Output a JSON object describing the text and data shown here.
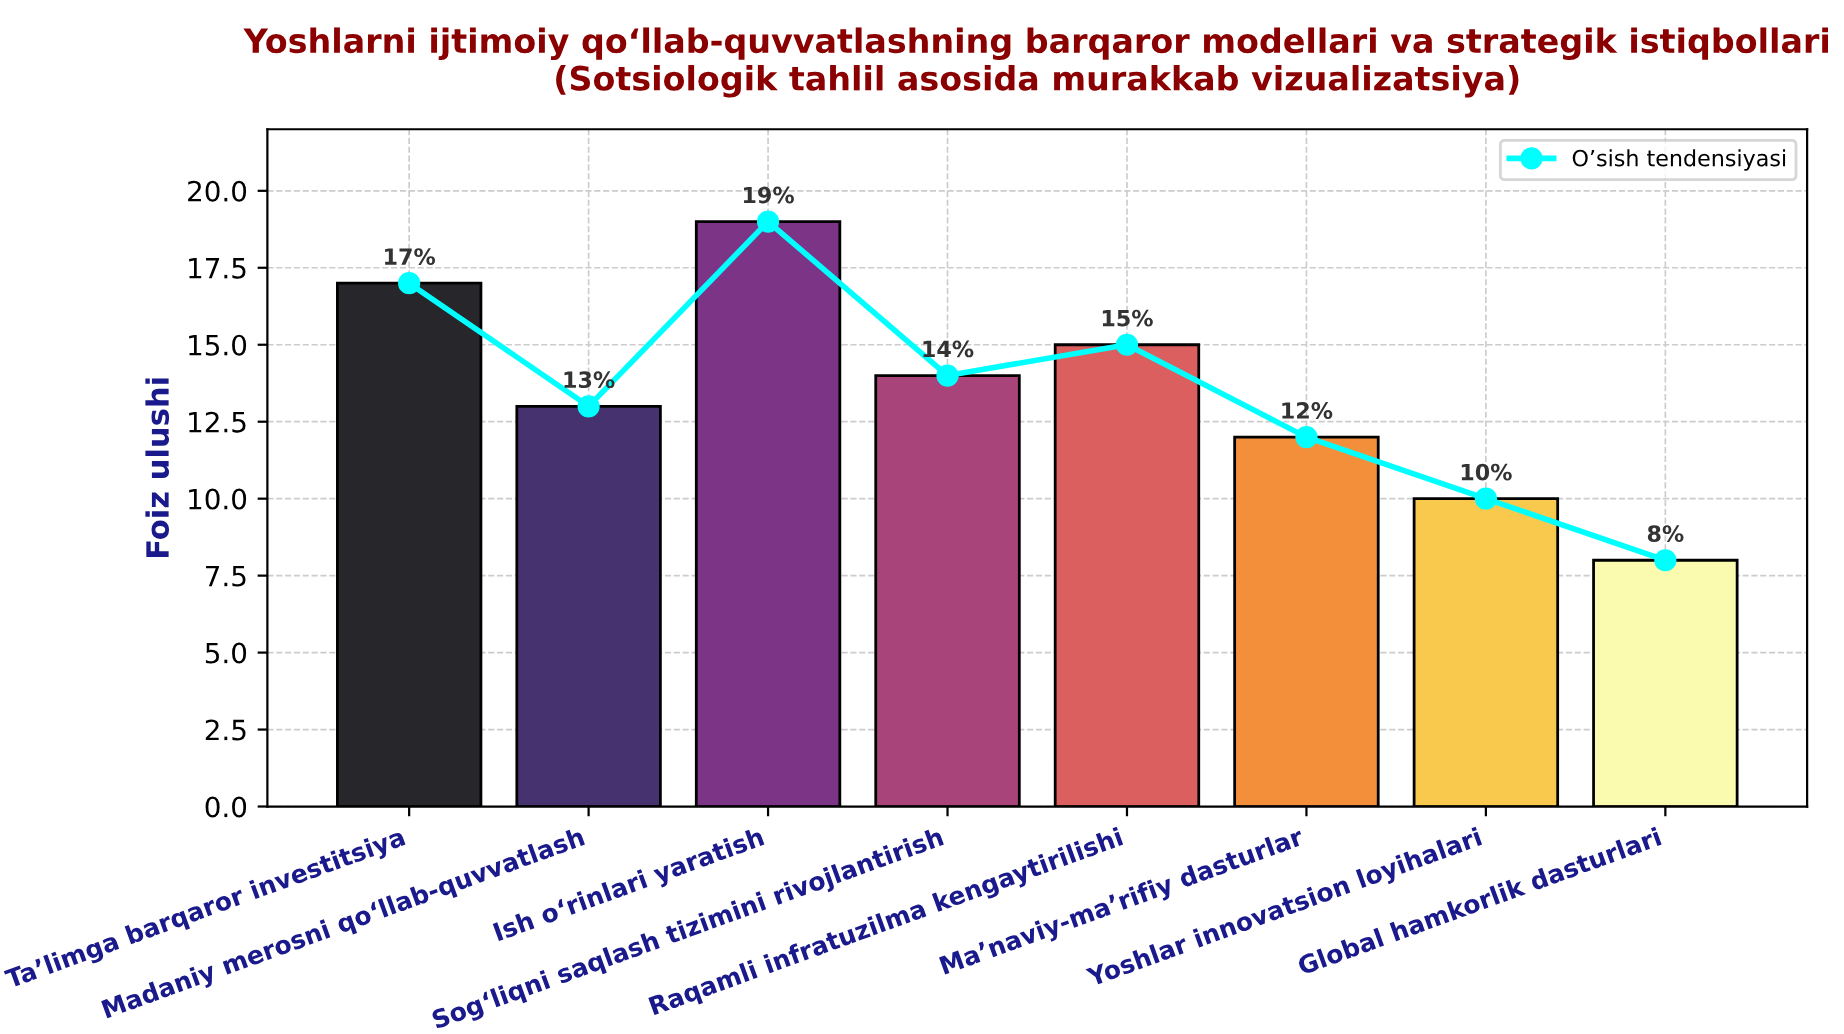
{
  "chart_data": {
    "type": "bar",
    "title": "Yoshlarni ijtimoiy qo‘llab-quvvatlashning barqaror modellari va strategik istiqbollari\n(Sotsiologik tahlil asosida murakkab vizualizatsiya)",
    "ylabel": "Foiz ulushi",
    "categories": [
      "Ta’limga barqaror investitsiya",
      "Madaniy merosni qo‘llab-quvvatlash",
      "Ish o‘rinlari yaratish",
      "Sog‘liqni saqlash tizimini rivojlantirish",
      "Raqamli infratuzilma kengaytirilishi",
      "Ma’naviy-ma’rifiy dasturlar",
      "Yoshlar innovatsion loyihalari",
      "Global hamkorlik dasturlari"
    ],
    "series": [
      {
        "values": [
          17,
          13,
          19,
          14,
          15,
          12,
          10,
          8
        ],
        "colors": [
          "#27262b",
          "#46326f",
          "#7c3586",
          "#a8447a",
          "#dc5f5f",
          "#f38f3b",
          "#f9c94e",
          "#fbfbb0"
        ],
        "value_labels": [
          "17%",
          "13%",
          "19%",
          "14%",
          "15%",
          "12%",
          "10%",
          "8%"
        ]
      },
      {
        "type": "line",
        "name": "O’sish tendensiyasi",
        "color": "#00ffff",
        "values": [
          17,
          13,
          19,
          14,
          15,
          12,
          10,
          8
        ],
        "marker": "circle"
      }
    ],
    "ylim": [
      0,
      22
    ],
    "yticks": [
      {
        "value": 0,
        "label": "0.0"
      },
      {
        "value": 2.5,
        "label": "2.5"
      },
      {
        "value": 5,
        "label": "5.0"
      },
      {
        "value": 7.5,
        "label": "7.5"
      },
      {
        "value": 10,
        "label": "10.0"
      },
      {
        "value": 12.5,
        "label": "12.5"
      },
      {
        "value": 15,
        "label": "15.0"
      },
      {
        "value": 17.5,
        "label": "17.5"
      },
      {
        "value": 20,
        "label": "20.0"
      }
    ],
    "grid": true,
    "legend": "top right"
  }
}
